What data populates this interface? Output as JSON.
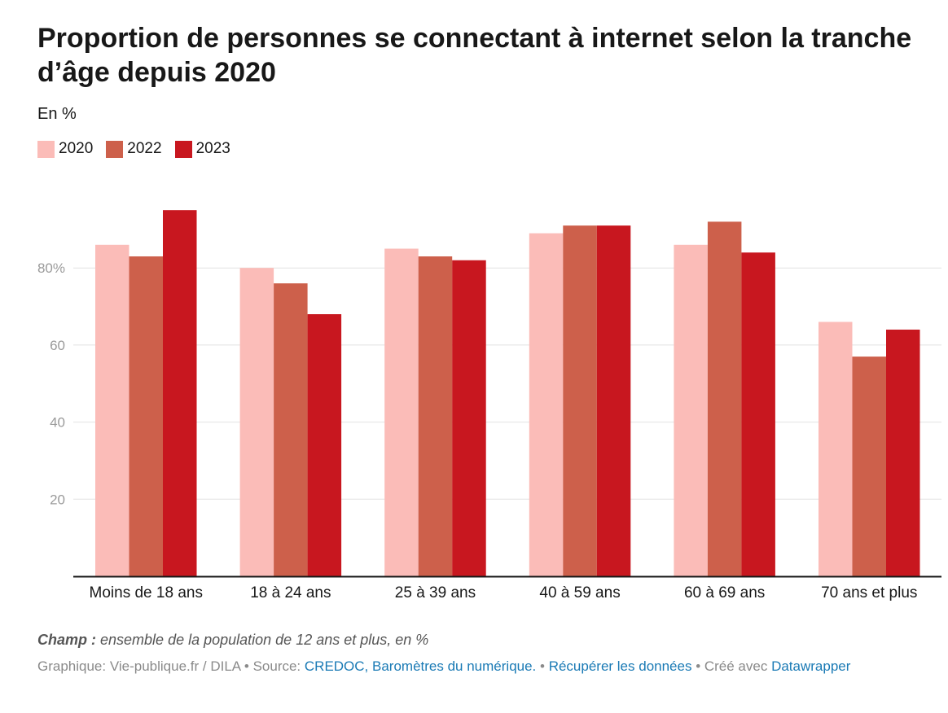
{
  "title": "Proportion de personnes se connectant à internet selon la tranche d’âge depuis 2020",
  "subtitle": "En %",
  "note": {
    "label": "Champ :",
    "text": "ensemble de la population de 12 ans et plus, en %"
  },
  "source": {
    "prefix": "Graphique: Vie-publique.fr / DILA • Source: ",
    "source_link": "CREDOC, Baromètres du numérique.",
    "sep1": " • ",
    "data_link": "Récupérer les données",
    "created": " • Créé avec ",
    "tool_link": "Datawrapper"
  },
  "colors": {
    "2020": "#fbbcb8",
    "2022": "#cd604b",
    "2023": "#c8171f"
  },
  "chart_data": {
    "type": "bar",
    "title": "Proportion de personnes se connectant à internet selon la tranche d’âge depuis 2020",
    "subtitle": "En %",
    "categories": [
      "Moins de 18 ans",
      "18 à 24 ans",
      "25 à 39 ans",
      "40 à 59 ans",
      "60 à 69 ans",
      "70 ans et plus"
    ],
    "series": [
      {
        "name": "2020",
        "values": [
          86,
          80,
          85,
          89,
          86,
          66
        ]
      },
      {
        "name": "2022",
        "values": [
          83,
          76,
          83,
          91,
          92,
          57
        ]
      },
      {
        "name": "2023",
        "values": [
          95,
          68,
          82,
          91,
          84,
          64
        ]
      }
    ],
    "yticks": [
      20,
      40,
      60,
      80
    ],
    "ytick_labels": [
      "20",
      "40",
      "60",
      "80%"
    ],
    "ylim": [
      0,
      100
    ],
    "grid": true,
    "legend": "top-left"
  }
}
